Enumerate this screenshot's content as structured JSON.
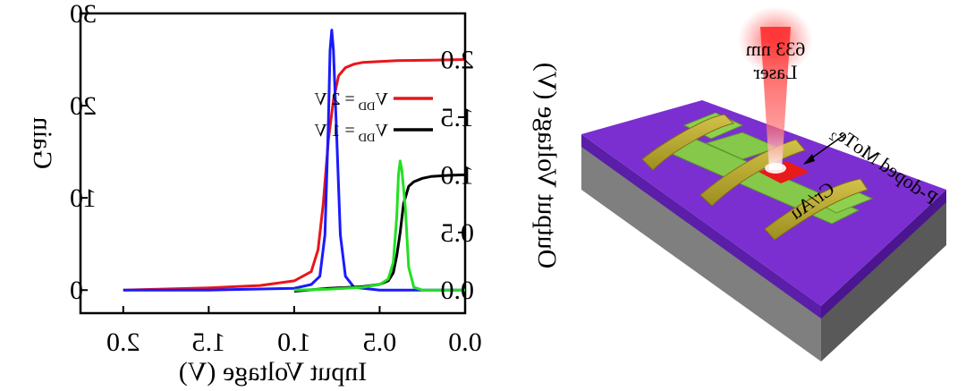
{
  "chart_data": {
    "type": "line",
    "mirrored_horizontally": true,
    "xlabel": "Input Voltage (V)",
    "ylabel_left": "Gain",
    "ylabel_right": "Output Voltage (V)",
    "xlim": [
      0,
      2.25
    ],
    "ylim_left": [
      -2.5,
      30
    ],
    "ylim_right": [
      -0.2,
      2.4
    ],
    "x_ticks": [
      "0.0",
      "0.5",
      "1.0",
      "1.5",
      "2.0"
    ],
    "y_left_ticks": [
      "0",
      "10",
      "20",
      "30"
    ],
    "y_right_ticks": [
      "0.0",
      "0.5",
      "1.0",
      "1.5",
      "2.0"
    ],
    "legend": [
      {
        "label": "V",
        "sub": "DD",
        "value": "= 2 V",
        "color": "#e8161b"
      },
      {
        "label": "V",
        "sub": "DD",
        "value": "= 1 V",
        "color": "#000000"
      }
    ],
    "series": [
      {
        "axis": "right",
        "color": "#e8161b",
        "x": [
          0.0,
          0.2,
          0.4,
          0.6,
          0.65,
          0.7,
          0.74,
          0.77,
          0.8,
          0.83,
          0.86,
          0.9,
          1.0,
          1.2,
          1.5,
          2.0
        ],
        "y": [
          2.0,
          1.995,
          1.99,
          1.975,
          1.96,
          1.93,
          1.86,
          1.65,
          1.3,
          0.75,
          0.35,
          0.16,
          0.08,
          0.04,
          0.02,
          0.0
        ]
      },
      {
        "axis": "left",
        "color": "#1a1aff",
        "x": [
          0.0,
          0.5,
          0.65,
          0.7,
          0.73,
          0.75,
          0.77,
          0.78,
          0.79,
          0.8,
          0.82,
          0.85,
          0.9,
          1.0,
          1.5,
          2.0
        ],
        "y": [
          0.0,
          0.0,
          0.3,
          1.5,
          6.0,
          16.0,
          26.0,
          28.2,
          26.0,
          18.0,
          6.0,
          1.5,
          0.6,
          0.2,
          0.0,
          0.0
        ]
      },
      {
        "axis": "right",
        "color": "#000000",
        "x": [
          0.0,
          0.1,
          0.2,
          0.25,
          0.3,
          0.33,
          0.36,
          0.38,
          0.4,
          0.42,
          0.45,
          0.5,
          0.6,
          0.8,
          1.0
        ],
        "y": [
          1.0,
          0.995,
          0.985,
          0.97,
          0.94,
          0.9,
          0.75,
          0.5,
          0.3,
          0.15,
          0.08,
          0.05,
          0.03,
          0.015,
          -0.01
        ]
      },
      {
        "axis": "left",
        "color": "#22e022",
        "x": [
          0.0,
          0.25,
          0.3,
          0.33,
          0.35,
          0.37,
          0.38,
          0.39,
          0.4,
          0.42,
          0.45,
          0.5,
          0.6,
          0.8,
          1.0
        ],
        "y": [
          0.0,
          0.0,
          0.3,
          2.5,
          9.0,
          13.0,
          14.0,
          12.5,
          8.0,
          3.0,
          1.2,
          0.6,
          0.3,
          0.1,
          0.0
        ]
      }
    ]
  },
  "device": {
    "laser_label_line1": "633 nm",
    "laser_label_line2": "Laser",
    "material_label": "P-doped MoTe₂",
    "contact_label": "Cr/Au"
  }
}
